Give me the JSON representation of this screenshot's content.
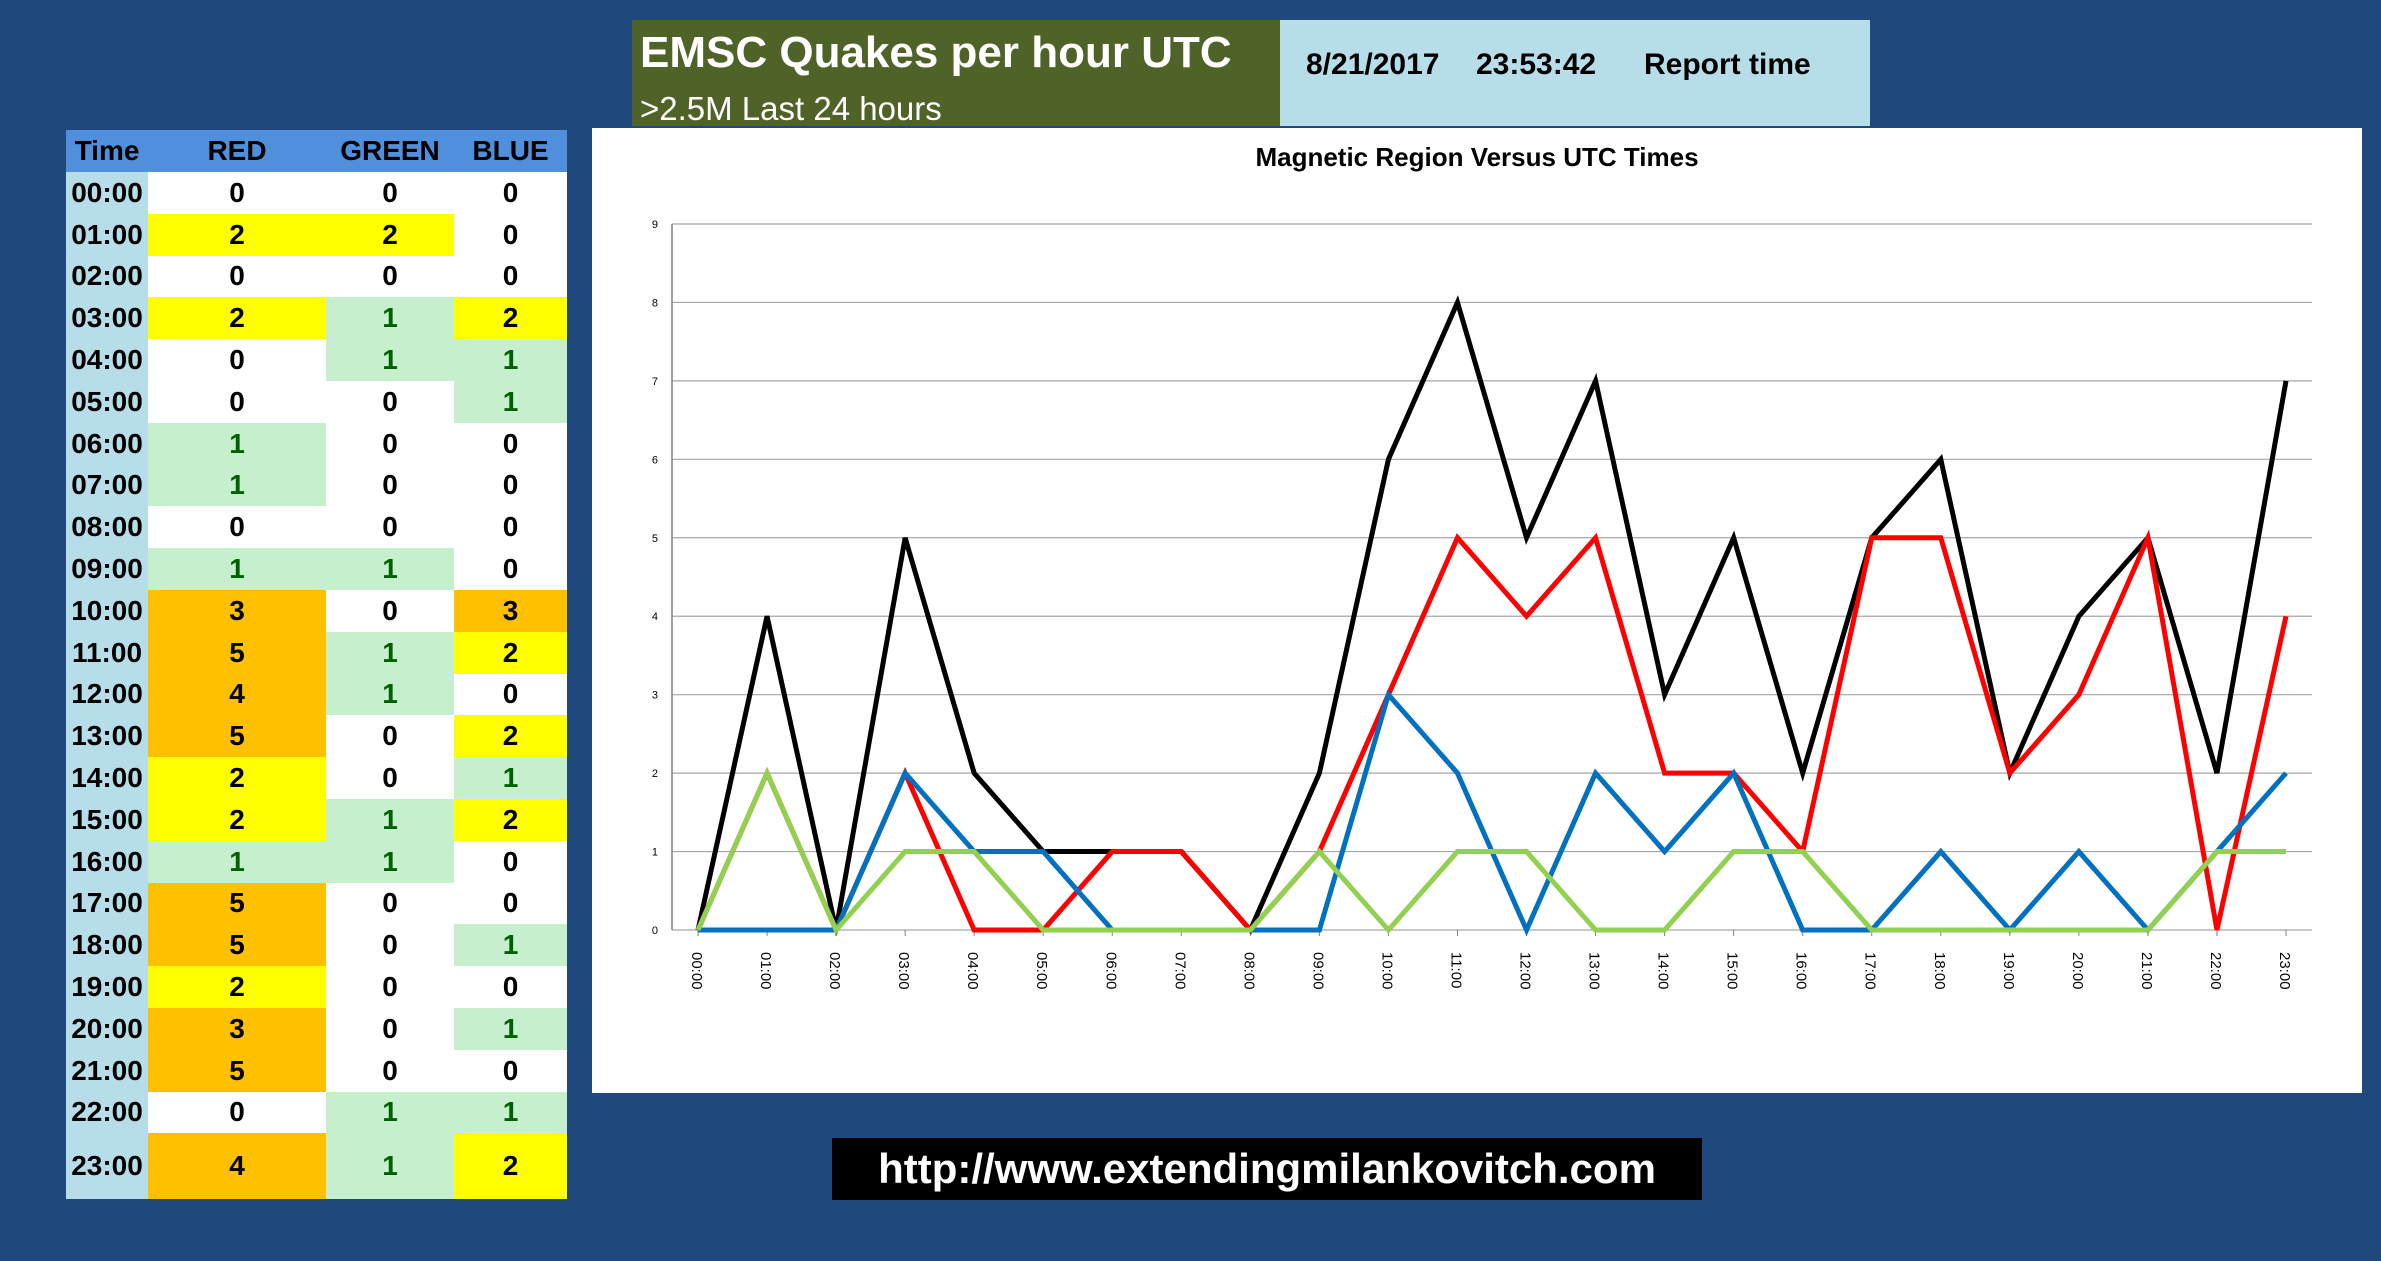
{
  "header": {
    "title": "EMSC Quakes per hour UTC",
    "subtitle": ">2.5M Last 24 hours"
  },
  "report": {
    "date": "8/21/2017",
    "time": "23:53:42",
    "label": "Report time"
  },
  "table": {
    "columns": [
      "Time",
      "RED",
      "GREEN",
      "BLUE"
    ],
    "rows": [
      {
        "time": "00:00",
        "red": 0,
        "green": 0,
        "blue": 0
      },
      {
        "time": "01:00",
        "red": 2,
        "green": 2,
        "blue": 0
      },
      {
        "time": "02:00",
        "red": 0,
        "green": 0,
        "blue": 0
      },
      {
        "time": "03:00",
        "red": 2,
        "green": 1,
        "blue": 2
      },
      {
        "time": "04:00",
        "red": 0,
        "green": 1,
        "blue": 1
      },
      {
        "time": "05:00",
        "red": 0,
        "green": 0,
        "blue": 1
      },
      {
        "time": "06:00",
        "red": 1,
        "green": 0,
        "blue": 0
      },
      {
        "time": "07:00",
        "red": 1,
        "green": 0,
        "blue": 0
      },
      {
        "time": "08:00",
        "red": 0,
        "green": 0,
        "blue": 0
      },
      {
        "time": "09:00",
        "red": 1,
        "green": 1,
        "blue": 0
      },
      {
        "time": "10:00",
        "red": 3,
        "green": 0,
        "blue": 3
      },
      {
        "time": "11:00",
        "red": 5,
        "green": 1,
        "blue": 2
      },
      {
        "time": "12:00",
        "red": 4,
        "green": 1,
        "blue": 0
      },
      {
        "time": "13:00",
        "red": 5,
        "green": 0,
        "blue": 2
      },
      {
        "time": "14:00",
        "red": 2,
        "green": 0,
        "blue": 1
      },
      {
        "time": "15:00",
        "red": 2,
        "green": 1,
        "blue": 2
      },
      {
        "time": "16:00",
        "red": 1,
        "green": 1,
        "blue": 0
      },
      {
        "time": "17:00",
        "red": 5,
        "green": 0,
        "blue": 0
      },
      {
        "time": "18:00",
        "red": 5,
        "green": 0,
        "blue": 1
      },
      {
        "time": "19:00",
        "red": 2,
        "green": 0,
        "blue": 0
      },
      {
        "time": "20:00",
        "red": 3,
        "green": 0,
        "blue": 1
      },
      {
        "time": "21:00",
        "red": 5,
        "green": 0,
        "blue": 0
      },
      {
        "time": "22:00",
        "red": 0,
        "green": 1,
        "blue": 1
      },
      {
        "time": "23:00",
        "red": 4,
        "green": 1,
        "blue": 2
      }
    ],
    "value_colors": {
      "0": {
        "bg": "#ffffff",
        "fg": "#000000"
      },
      "1": {
        "bg": "#c6efce",
        "fg": "#006100"
      },
      "2": {
        "bg": "#ffff00",
        "fg": "#000000"
      },
      "3plus": {
        "bg": "#ffc000",
        "fg": "#000000"
      }
    }
  },
  "chart_data": {
    "type": "line",
    "title": "Magnetic Region Versus UTC Times",
    "xlabel": "",
    "ylabel": "",
    "ylim": [
      0,
      9
    ],
    "yticks": [
      0,
      1,
      2,
      3,
      4,
      5,
      6,
      7,
      8,
      9
    ],
    "grid": true,
    "legend": "none",
    "categories": [
      "00:00",
      "01:00",
      "02:00",
      "03:00",
      "04:00",
      "05:00",
      "06:00",
      "07:00",
      "08:00",
      "09:00",
      "10:00",
      "11:00",
      "12:00",
      "13:00",
      "14:00",
      "15:00",
      "16:00",
      "17:00",
      "18:00",
      "19:00",
      "20:00",
      "21:00",
      "22:00",
      "23:00"
    ],
    "series": [
      {
        "color": "#000000",
        "values": [
          0,
          4,
          0,
          5,
          2,
          1,
          1,
          1,
          0,
          2,
          6,
          8,
          5,
          7,
          3,
          5,
          2,
          5,
          6,
          2,
          4,
          5,
          2,
          7
        ]
      },
      {
        "color": "#ff0000",
        "values": [
          0,
          2,
          0,
          2,
          0,
          0,
          1,
          1,
          0,
          1,
          3,
          5,
          4,
          5,
          2,
          2,
          1,
          5,
          5,
          2,
          3,
          5,
          0,
          4
        ]
      },
      {
        "color": "#0070c0",
        "values": [
          0,
          0,
          0,
          2,
          1,
          1,
          0,
          0,
          0,
          0,
          3,
          2,
          0,
          2,
          1,
          2,
          0,
          0,
          1,
          0,
          1,
          0,
          1,
          2
        ]
      },
      {
        "color": "#92d050",
        "values": [
          0,
          2,
          0,
          1,
          1,
          0,
          0,
          0,
          0,
          1,
          0,
          1,
          1,
          0,
          0,
          1,
          1,
          0,
          0,
          0,
          0,
          0,
          1,
          1
        ]
      }
    ]
  },
  "footer": {
    "url": "http://www.extendingmilankovitch.com"
  }
}
